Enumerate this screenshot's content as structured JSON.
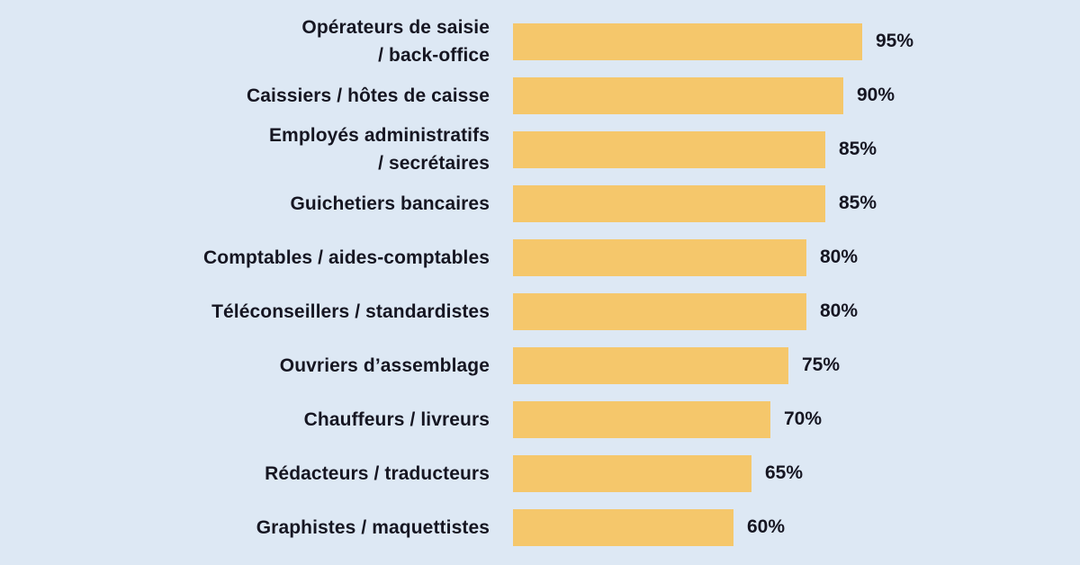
{
  "page": {
    "background_color": "#dde8f4",
    "text_color": "#161622"
  },
  "chart_data": {
    "type": "bar",
    "orientation": "horizontal",
    "xlim": [
      0,
      100
    ],
    "grid": false,
    "legend": false,
    "bar_color": "#f5c76b",
    "value_suffix": "%",
    "categories": [
      "Opérateurs de saisie\n/ back-office",
      "Caissiers / hôtes de caisse",
      "Employés administratifs\n/ secrétaires",
      "Guichetiers bancaires",
      "Comptables / aides-comptables",
      "Téléconseillers / standardistes",
      "Ouvriers d’assemblage",
      "Chauffeurs / livreurs",
      "Rédacteurs / traducteurs",
      "Graphistes / maquettistes"
    ],
    "values": [
      95,
      90,
      85,
      85,
      80,
      80,
      75,
      70,
      65,
      60
    ],
    "value_labels": [
      "95%",
      "90%",
      "85%",
      "85%",
      "80%",
      "80%",
      "75%",
      "70%",
      "65%",
      "60%"
    ]
  }
}
